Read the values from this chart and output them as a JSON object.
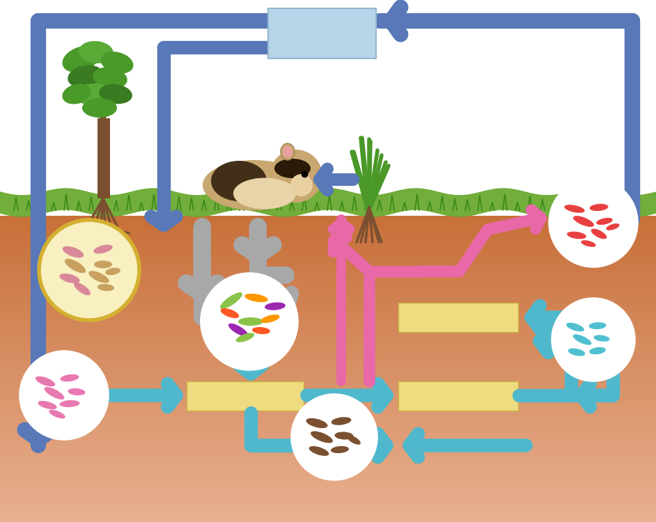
{
  "bg_color": "#ffffff",
  "soil_top_color": "#c8703a",
  "soil_bottom_color": "#e8b090",
  "grass_color": "#6aaa30",
  "blue_color": "#5878b8",
  "light_blue_box_color": "#b8d4e8",
  "yellow_box_color": "#f0dc80",
  "pink_color": "#e868a8",
  "gray_color": "#a8a8a8",
  "teal_color": "#50b8cc",
  "white": "#ffffff",
  "nodule_circle_bg": "#f8f0c0",
  "nodule_circle_border": "#d4b840",
  "soil_circle_bg": "#ffffff",
  "soil_circle_border": "#ffffff",
  "tree_green_dark": "#3a7a20",
  "tree_green_mid": "#4a9a2a",
  "tree_green_light": "#5aaa38",
  "tree_brown": "#7a5030",
  "grass_small_green": "#4a9828"
}
